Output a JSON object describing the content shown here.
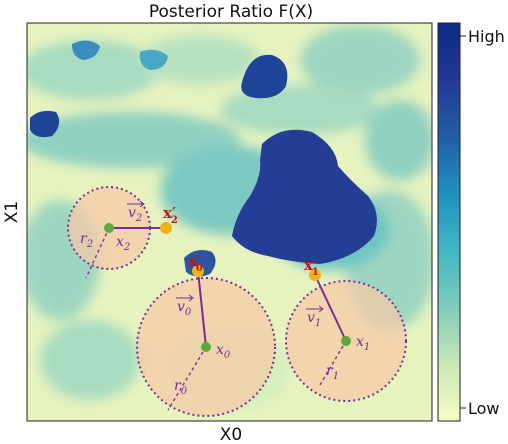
{
  "figure": {
    "title": "Posterior Ratio F(X)",
    "xlabel": "X0",
    "ylabel": "X1",
    "colorbar": {
      "high_label": "High",
      "low_label": "Low",
      "gradient": [
        "#f7fbc5",
        "#c8e9b4",
        "#7fccbb",
        "#41b6c4",
        "#1f91c0",
        "#225ea8",
        "#233894",
        "#0c2c84"
      ]
    }
  },
  "background_colors": [
    "#f3f8c4",
    "#d6efbd",
    "#a6dcc0",
    "#6fc4c2",
    "#2f6fb3",
    "#1f3f95"
  ],
  "circles": [
    {
      "id": "2",
      "center_label": "x",
      "sub": "2",
      "radius_label": "r",
      "vec_label": "v",
      "xp_label": "x",
      "xp_sub": "2"
    },
    {
      "id": "0",
      "center_label": "x",
      "sub": "0",
      "radius_label": "r",
      "vec_label": "v",
      "xp_label": "x",
      "xp_sub": "0"
    },
    {
      "id": "1",
      "center_label": "x",
      "sub": "1",
      "radius_label": "r",
      "vec_label": "v",
      "xp_label": "x",
      "xp_sub": "1"
    }
  ],
  "colors": {
    "circle_fill": "#f6c9a6",
    "circle_border": "#7a2a9a",
    "center_point": "#5aab3c",
    "prime_point": "#f2b21c",
    "vector": "#7a2a9a",
    "prime_label": "#c0161d"
  }
}
